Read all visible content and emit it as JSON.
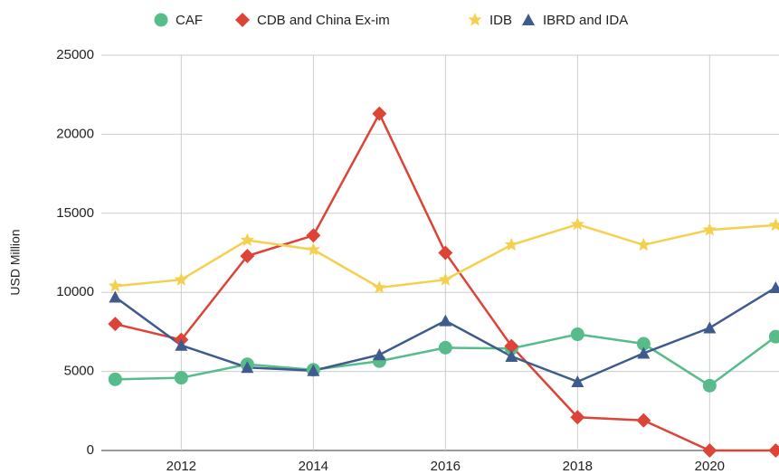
{
  "chart_data": {
    "type": "line",
    "y_label": "USD Million",
    "x": [
      2011,
      2012,
      2013,
      2014,
      2015,
      2016,
      2017,
      2018,
      2019,
      2020,
      2021
    ],
    "xlim": [
      2010.79,
      2021.05
    ],
    "xticks": [
      2012,
      2014,
      2016,
      2018,
      2020
    ],
    "ylim": [
      0,
      25000
    ],
    "yticks": [
      0,
      5000,
      10000,
      15000,
      20000,
      25000
    ],
    "grid": true,
    "legend": "top",
    "series": [
      {
        "name": "CAF",
        "color": "#57bb8a",
        "marker": "circle",
        "values": [
          4500,
          4600,
          5450,
          5100,
          5650,
          6500,
          6450,
          7350,
          6750,
          4100,
          7200
        ]
      },
      {
        "name": "CDB and China Ex-im",
        "color": "#db4437",
        "marker": "diamond",
        "values": [
          8000,
          7000,
          12300,
          13600,
          21300,
          12500,
          6600,
          2100,
          1900,
          0,
          0
        ]
      },
      {
        "name": "IDB",
        "color": "#f5d04e",
        "marker": "star",
        "values": [
          10400,
          10800,
          13300,
          12700,
          10300,
          10800,
          13000,
          14300,
          13000,
          13950,
          14250
        ]
      },
      {
        "name": "IBRD and IDA",
        "color": "#3f5b8d",
        "marker": "triangle",
        "values": [
          9700,
          6650,
          5250,
          5050,
          6050,
          8200,
          5950,
          4350,
          6150,
          7750,
          10300
        ]
      }
    ]
  }
}
